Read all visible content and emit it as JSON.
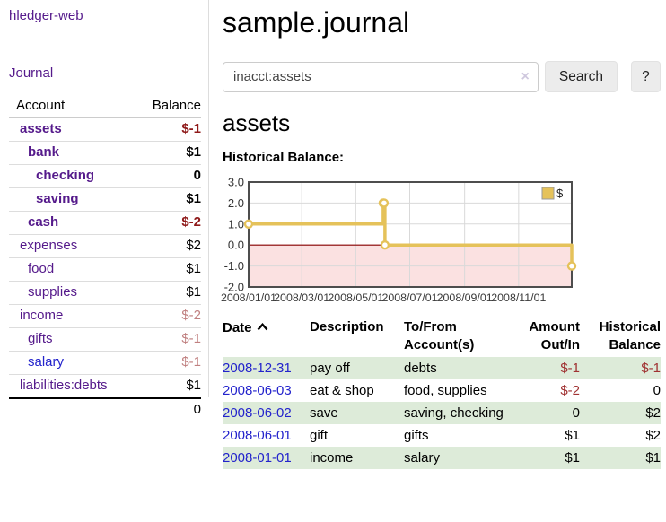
{
  "app": {
    "title": "hledger-web"
  },
  "colors": {
    "link_purple": "#551a8b",
    "link_blue": "#2323cc",
    "negative_strong": "#8f1a1a",
    "negative": "#a03232",
    "negative_muted": "#c08080",
    "row_highlight": "#ddebd9",
    "button_bg": "#ececec"
  },
  "sidebar": {
    "journal_link": "Journal",
    "accounts_table": {
      "headers": [
        "Account",
        "Balance"
      ],
      "rows": [
        {
          "name": "assets",
          "level": 1,
          "bold": true,
          "balance": "$-1",
          "balance_style": "neg-strong"
        },
        {
          "name": "bank",
          "level": 2,
          "bold": true,
          "balance": "$1",
          "balance_style": "pos-strong"
        },
        {
          "name": "checking",
          "level": 3,
          "bold": true,
          "balance": "0",
          "balance_style": "pos-strong"
        },
        {
          "name": "saving",
          "level": 3,
          "bold": true,
          "balance": "$1",
          "balance_style": "pos-strong"
        },
        {
          "name": "cash",
          "level": 2,
          "bold": true,
          "balance": "$-2",
          "balance_style": "neg-strong"
        },
        {
          "name": "expenses",
          "level": 1,
          "bold": false,
          "balance": "$2",
          "balance_style": "pos"
        },
        {
          "name": "food",
          "level": 2,
          "bold": false,
          "balance": "$1",
          "balance_style": "pos"
        },
        {
          "name": "supplies",
          "level": 2,
          "bold": false,
          "balance": "$1",
          "balance_style": "pos"
        },
        {
          "name": "income",
          "level": 1,
          "bold": false,
          "balance": "$-2",
          "balance_style": "neg-muted"
        },
        {
          "name": "gifts",
          "level": 2,
          "bold": false,
          "balance": "$-1",
          "balance_style": "neg-muted"
        },
        {
          "name": "salary",
          "level": 2,
          "bold": false,
          "balance": "$-1",
          "balance_style": "neg-muted",
          "link_color": "blue"
        },
        {
          "name": "liabilities:debts",
          "level": 1,
          "bold": false,
          "balance": "$1",
          "balance_style": "pos"
        }
      ],
      "total": "0"
    }
  },
  "header": {
    "title": "sample.journal"
  },
  "search": {
    "value": "inacct:assets",
    "clear_icon": "×",
    "button_label": "Search",
    "help_label": "?"
  },
  "account_page": {
    "heading": "assets",
    "chart_label": "Historical Balance:"
  },
  "chart_data": {
    "type": "line",
    "title": "Historical Balance",
    "line_style": "step-after",
    "series": [
      {
        "name": "$",
        "color": "#e5c25a",
        "points": [
          {
            "date": "2008-01-01",
            "day": 0,
            "value": 1
          },
          {
            "date": "2008-06-01",
            "day": 152,
            "value": 2
          },
          {
            "date": "2008-06-02",
            "day": 153,
            "value": 2
          },
          {
            "date": "2008-06-03",
            "day": 154,
            "value": 0
          },
          {
            "date": "2008-12-31",
            "day": 365,
            "value": -1
          }
        ]
      }
    ],
    "ylim": [
      -2,
      3
    ],
    "yticks": [
      3,
      2,
      1,
      0,
      -1,
      -2
    ],
    "ytick_labels": [
      "3.0",
      "2.0",
      "1.0",
      "0.0",
      "-1.0",
      "-2.0"
    ],
    "xrange_days": [
      0,
      365
    ],
    "xticks": [
      {
        "day": 0,
        "label": "2008/01/01"
      },
      {
        "day": 60,
        "label": "2008/03/01"
      },
      {
        "day": 121,
        "label": "2008/05/01"
      },
      {
        "day": 182,
        "label": "2008/07/01"
      },
      {
        "day": 244,
        "label": "2008/09/01"
      },
      {
        "day": 305,
        "label": "2008/11/01"
      }
    ],
    "grid": true,
    "border_color": "#4d4d4d",
    "grid_color": "#d9d9d9",
    "zero_line_color": "#8b0000",
    "negative_region_color": "#f8c9c9",
    "legend": {
      "label": "$",
      "swatch_color": "#e5c25a",
      "position": "top-right"
    }
  },
  "register": {
    "headers": {
      "date": "Date",
      "description": "Description",
      "accounts": "To/From Account(s)",
      "amount": "Amount Out/In",
      "balance": "Historical Balance"
    },
    "row_highlight": "#ddebd9",
    "rows": [
      {
        "date": "2008-12-31",
        "description": "pay off",
        "accounts": "debts",
        "amount": "$-1",
        "amount_neg": true,
        "balance": "$-1",
        "balance_neg": true,
        "shaded": true
      },
      {
        "date": "2008-06-03",
        "description": "eat & shop",
        "accounts": "food, supplies",
        "amount": "$-2",
        "amount_neg": true,
        "balance": "0",
        "balance_neg": false,
        "shaded": false
      },
      {
        "date": "2008-06-02",
        "description": "save",
        "accounts": "saving, checking",
        "amount": "0",
        "amount_neg": false,
        "balance": "$2",
        "balance_neg": false,
        "shaded": true
      },
      {
        "date": "2008-06-01",
        "description": "gift",
        "accounts": "gifts",
        "amount": "$1",
        "amount_neg": false,
        "balance": "$2",
        "balance_neg": false,
        "shaded": false
      },
      {
        "date": "2008-01-01",
        "description": "income",
        "accounts": "salary",
        "amount": "$1",
        "amount_neg": false,
        "balance": "$1",
        "balance_neg": false,
        "shaded": true
      }
    ]
  }
}
